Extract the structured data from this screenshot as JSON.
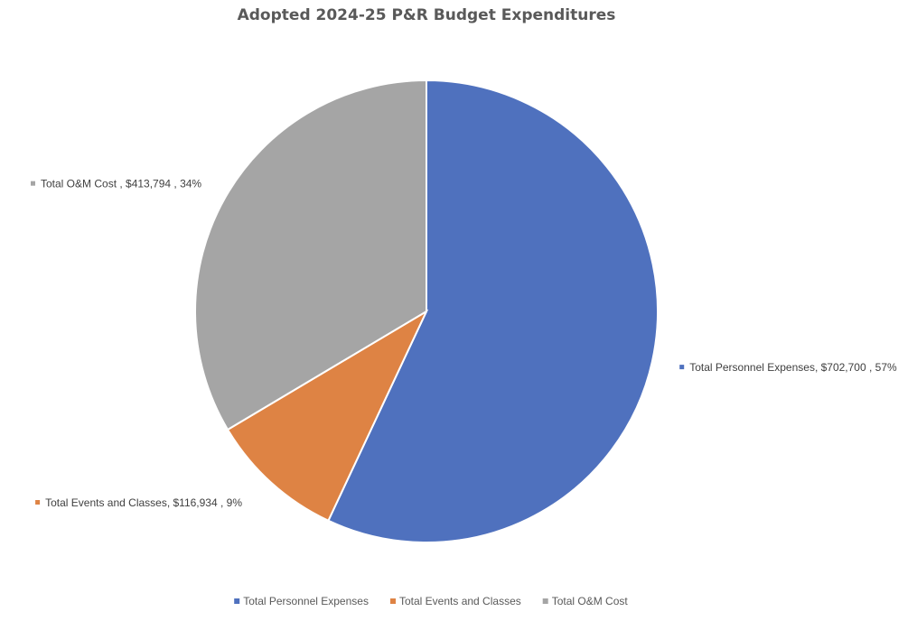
{
  "chart_data": {
    "type": "pie",
    "title": "Adopted 2024-25 P&R  Budget Expenditures",
    "slices": [
      {
        "name": "Total Personnel Expenses",
        "value": 702700,
        "percent": 57,
        "label": "Total Personnel Expenses,  $702,700 , 57%",
        "color": "#4F71BE"
      },
      {
        "name": "Total Events and Classes",
        "value": 116934,
        "percent": 9,
        "label": "Total Events and Classes,  $116,934 , 9%",
        "color": "#DE8344"
      },
      {
        "name": "Total O&M Cost",
        "value": 413794,
        "percent": 34,
        "label": "Total O&M Cost ,  $413,794 , 34%",
        "color": "#A5A5A5"
      }
    ],
    "legend": {
      "position": "bottom",
      "items": [
        "Total Personnel Expenses",
        "Total Events and Classes",
        "Total O&M Cost"
      ]
    }
  }
}
